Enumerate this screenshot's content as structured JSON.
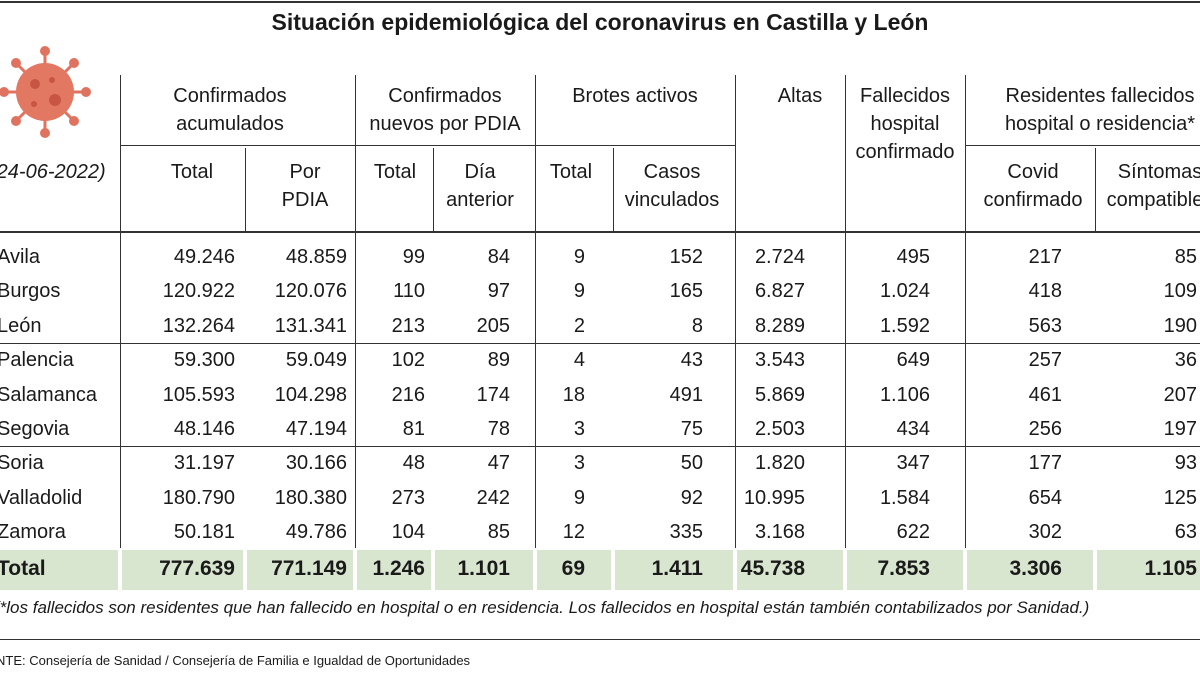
{
  "title": "Situación epidemiológica del coronavirus en Castilla y León",
  "date": "(24-06-2022)",
  "table": {
    "groups": [
      [
        "Confirmados",
        "acumulados"
      ],
      [
        "Confirmados",
        "nuevos por PDIA"
      ],
      [
        "Brotes activos"
      ],
      [
        "Altas"
      ],
      [
        "Fallecidos",
        "hospital",
        "confirmado"
      ],
      [
        "Residentes fallecidos",
        "hospital o residencia*"
      ]
    ],
    "subheaders": [
      [
        "Total"
      ],
      [
        "Por",
        "PDIA"
      ],
      [
        "Total"
      ],
      [
        "Día",
        "anterior"
      ],
      [
        "Total"
      ],
      [
        "Casos",
        "vinculados"
      ],
      [
        "Covid",
        "confirmado"
      ],
      [
        "Síntomas",
        "compatibles"
      ]
    ],
    "rows": [
      [
        "Avila",
        "49.246",
        "48.859",
        "99",
        "84",
        "9",
        "152",
        "2.724",
        "495",
        "217",
        "85"
      ],
      [
        "Burgos",
        "120.922",
        "120.076",
        "110",
        "97",
        "9",
        "165",
        "6.827",
        "1.024",
        "418",
        "109"
      ],
      [
        "León",
        "132.264",
        "131.341",
        "213",
        "205",
        "2",
        "8",
        "8.289",
        "1.592",
        "563",
        "190"
      ],
      [
        "Palencia",
        "59.300",
        "59.049",
        "102",
        "89",
        "4",
        "43",
        "3.543",
        "649",
        "257",
        "36"
      ],
      [
        "Salamanca",
        "105.593",
        "104.298",
        "216",
        "174",
        "18",
        "491",
        "5.869",
        "1.106",
        "461",
        "207"
      ],
      [
        "Segovia",
        "48.146",
        "47.194",
        "81",
        "78",
        "3",
        "75",
        "2.503",
        "434",
        "256",
        "197"
      ],
      [
        "Soria",
        "31.197",
        "30.166",
        "48",
        "47",
        "3",
        "50",
        "1.820",
        "347",
        "177",
        "93"
      ],
      [
        "Valladolid",
        "180.790",
        "180.380",
        "273",
        "242",
        "9",
        "92",
        "10.995",
        "1.584",
        "654",
        "125"
      ],
      [
        "Zamora",
        "50.181",
        "49.786",
        "104",
        "85",
        "12",
        "335",
        "3.168",
        "622",
        "302",
        "63"
      ]
    ],
    "total": [
      "Total",
      "777.639",
      "771.149",
      "1.246",
      "1.101",
      "69",
      "1.411",
      "45.738",
      "7.853",
      "3.306",
      "1.105"
    ]
  },
  "footnote": "(*los fallecidos son residentes que han fallecido en hospital o en residencia. Los fallecidos en hospital están también contabilizados por Sanidad.)",
  "source": "FUENTE: Consejería de Sanidad / Consejería de Familia e Igualdad de Oportunidades"
}
